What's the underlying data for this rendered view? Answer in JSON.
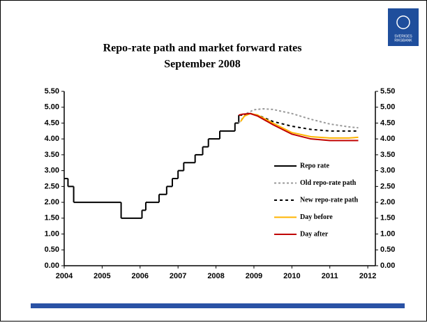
{
  "logo": {
    "line1": "SVERIGES",
    "line2": "RIKSBANK"
  },
  "chart_data": {
    "type": "line",
    "title": "Repo-rate path and market forward rates",
    "subtitle": "September 2008",
    "xlim": [
      2004,
      2012.2
    ],
    "xticks": [
      2004,
      2005,
      2006,
      2007,
      2008,
      2009,
      2010,
      2011,
      2012
    ],
    "ylim": [
      0,
      5.5
    ],
    "yticks": [
      {
        "value": 0,
        "label": "0.00"
      },
      {
        "value": 0.5,
        "label": "0.50"
      },
      {
        "value": 1,
        "label": "1.00"
      },
      {
        "value": 1.5,
        "label": "1.50"
      },
      {
        "value": 2,
        "label": "2.00"
      },
      {
        "value": 2.5,
        "label": "2.50"
      },
      {
        "value": 3,
        "label": "3.00"
      },
      {
        "value": 3.5,
        "label": "3.50"
      },
      {
        "value": 4,
        "label": "4.00"
      },
      {
        "value": 4.5,
        "label": "4.50"
      },
      {
        "value": 5,
        "label": "5.00"
      },
      {
        "value": 5.5,
        "label": "5.50"
      }
    ],
    "y2lim": [
      0,
      5.5
    ],
    "y2ticks": [
      {
        "value": 0,
        "label": "0.00"
      },
      {
        "value": 0.5,
        "label": "0.50"
      },
      {
        "value": 1,
        "label": "1.00"
      },
      {
        "value": 1.5,
        "label": "1.50"
      },
      {
        "value": 2,
        "label": "2.00"
      },
      {
        "value": 2.5,
        "label": "2.50"
      },
      {
        "value": 3,
        "label": "3.00"
      },
      {
        "value": 3.5,
        "label": "3.50"
      },
      {
        "value": 4,
        "label": "4.00"
      },
      {
        "value": 4.5,
        "label": "4.50"
      },
      {
        "value": 5,
        "label": "5.00"
      },
      {
        "value": 5.5,
        "label": "5.50"
      }
    ],
    "grid": false,
    "legend": "right",
    "series": [
      {
        "name": "Repo rate",
        "color": "#000000",
        "step": true,
        "dash": "none",
        "x": [
          2004,
          2004.1,
          2004.25,
          2005.5,
          2006.05,
          2006.15,
          2006.5,
          2006.7,
          2006.85,
          2007.0,
          2007.15,
          2007.45,
          2007.65,
          2007.8,
          2008.1,
          2008.5,
          2008.6
        ],
        "values": [
          2.75,
          2.5,
          2.0,
          1.5,
          1.75,
          2.0,
          2.25,
          2.5,
          2.75,
          3.0,
          3.25,
          3.5,
          3.75,
          4.0,
          4.25,
          4.5,
          4.75
        ]
      },
      {
        "name": "Old repo-rate path",
        "color": "#999999",
        "step": false,
        "dash": "3,3",
        "x": [
          2008.6,
          2008.8,
          2009,
          2009.25,
          2009.5,
          2010,
          2010.5,
          2011,
          2011.5,
          2011.75
        ],
        "values": [
          4.5,
          4.8,
          4.92,
          4.95,
          4.93,
          4.8,
          4.62,
          4.47,
          4.38,
          4.35
        ]
      },
      {
        "name": "New repo-rate path",
        "color": "#000000",
        "step": false,
        "dash": "4,4",
        "x": [
          2008.75,
          2008.9,
          2009.1,
          2009.5,
          2010,
          2010.5,
          2011,
          2011.5,
          2011.75
        ],
        "values": [
          4.75,
          4.8,
          4.75,
          4.55,
          4.4,
          4.3,
          4.25,
          4.25,
          4.25
        ]
      },
      {
        "name": "Day before",
        "color": "#ffb400",
        "step": false,
        "dash": "none",
        "x": [
          2008.65,
          2008.75,
          2008.9,
          2009.1,
          2009.5,
          2010,
          2010.5,
          2011,
          2011.5,
          2011.75
        ],
        "values": [
          4.55,
          4.72,
          4.8,
          4.75,
          4.5,
          4.2,
          4.07,
          4.03,
          4.03,
          4.05
        ]
      },
      {
        "name": "Day after",
        "color": "#c00000",
        "step": false,
        "dash": "none",
        "x": [
          2008.6,
          2008.7,
          2008.9,
          2009.1,
          2009.5,
          2010,
          2010.5,
          2011,
          2011.5,
          2011.75
        ],
        "values": [
          4.75,
          4.78,
          4.8,
          4.72,
          4.45,
          4.15,
          4.0,
          3.95,
          3.95,
          3.95
        ]
      }
    ]
  }
}
